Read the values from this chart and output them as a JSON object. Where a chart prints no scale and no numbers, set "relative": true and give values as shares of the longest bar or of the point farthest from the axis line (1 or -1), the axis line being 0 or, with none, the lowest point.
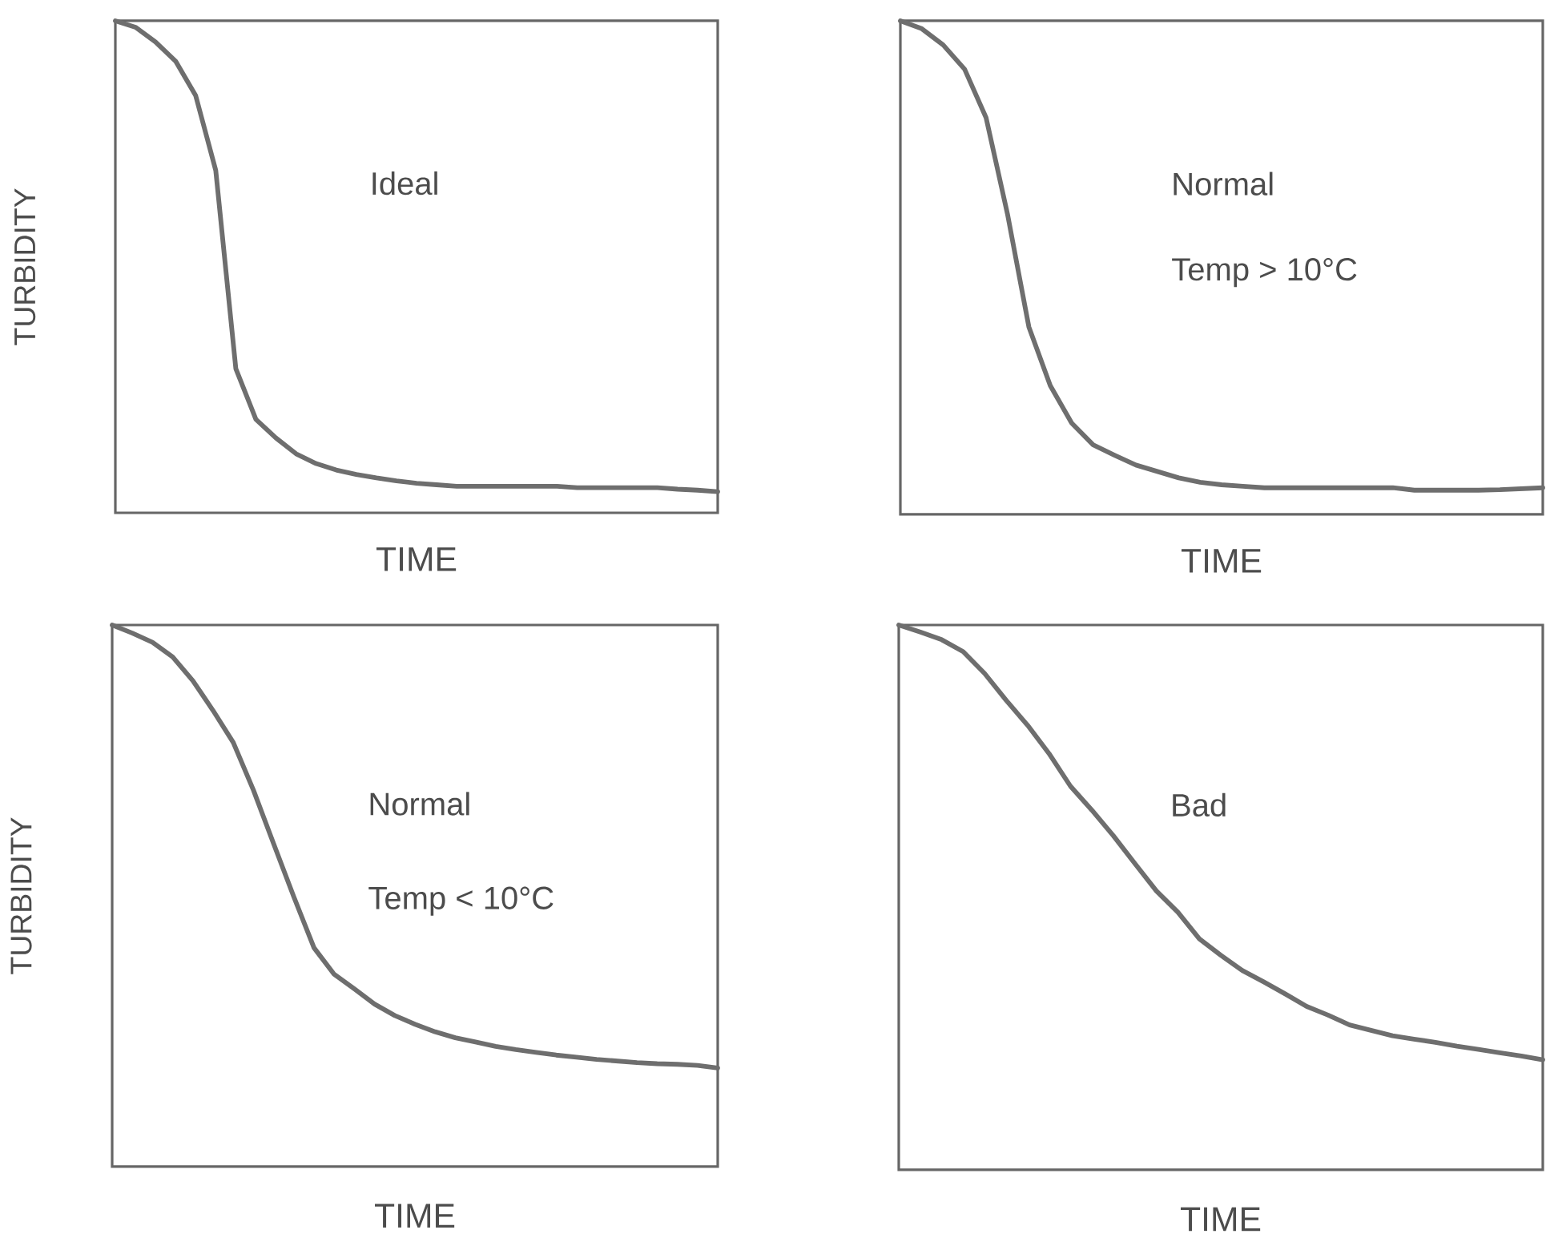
{
  "chart_data": [
    {
      "type": "line",
      "relative": true,
      "xlabel": "TIME",
      "ylabel": "TURBIDITY",
      "annotations": [
        "Ideal"
      ],
      "categories": [
        null,
        null,
        null,
        null,
        null,
        null,
        null,
        null,
        null,
        null,
        null,
        null,
        null,
        null,
        null,
        null,
        null,
        null,
        null,
        null,
        null,
        null,
        null,
        null,
        null,
        null,
        null,
        null,
        null,
        null,
        null
      ],
      "series": [
        {
          "color": "#6e6e6e",
          "values": [
            1.0,
            0.987,
            0.957,
            0.918,
            0.848,
            0.696,
            0.293,
            0.19,
            0.152,
            0.12,
            0.1,
            0.087,
            0.078,
            0.071,
            0.065,
            0.06,
            0.057,
            0.054,
            0.054,
            0.054,
            0.054,
            0.054,
            0.054,
            0.051,
            0.051,
            0.051,
            0.051,
            0.051,
            0.048,
            0.046,
            0.043
          ]
        }
      ]
    },
    {
      "type": "line",
      "relative": true,
      "xlabel": "TIME",
      "annotations": [
        "Normal",
        "Temp > 10°C"
      ],
      "categories": [
        null,
        null,
        null,
        null,
        null,
        null,
        null,
        null,
        null,
        null,
        null,
        null,
        null,
        null,
        null,
        null,
        null,
        null,
        null,
        null,
        null,
        null,
        null,
        null,
        null,
        null,
        null,
        null,
        null,
        null,
        null
      ],
      "series": [
        {
          "color": "#6e6e6e",
          "values": [
            1.0,
            0.984,
            0.951,
            0.902,
            0.804,
            0.609,
            0.38,
            0.261,
            0.185,
            0.141,
            0.12,
            0.1,
            0.087,
            0.074,
            0.065,
            0.06,
            0.057,
            0.054,
            0.054,
            0.054,
            0.054,
            0.054,
            0.054,
            0.054,
            0.049,
            0.049,
            0.049,
            0.049,
            0.05,
            0.052,
            0.054
          ]
        }
      ]
    },
    {
      "type": "line",
      "relative": true,
      "xlabel": "TIME",
      "ylabel": "TURBIDITY",
      "annotations": [
        "Normal",
        "Temp < 10°C"
      ],
      "categories": [
        null,
        null,
        null,
        null,
        null,
        null,
        null,
        null,
        null,
        null,
        null,
        null,
        null,
        null,
        null,
        null,
        null,
        null,
        null,
        null,
        null,
        null,
        null,
        null,
        null,
        null,
        null,
        null,
        null,
        null,
        null
      ],
      "series": [
        {
          "color": "#6e6e6e",
          "values": [
            1.0,
            0.985,
            0.968,
            0.941,
            0.897,
            0.842,
            0.783,
            0.695,
            0.596,
            0.498,
            0.404,
            0.355,
            0.328,
            0.3,
            0.279,
            0.263,
            0.249,
            0.238,
            0.23,
            0.222,
            0.216,
            0.211,
            0.206,
            0.202,
            0.198,
            0.195,
            0.192,
            0.19,
            0.189,
            0.187,
            0.182
          ]
        }
      ]
    },
    {
      "type": "line",
      "relative": true,
      "xlabel": "TIME",
      "annotations": [
        "Bad"
      ],
      "categories": [
        null,
        null,
        null,
        null,
        null,
        null,
        null,
        null,
        null,
        null,
        null,
        null,
        null,
        null,
        null,
        null,
        null,
        null,
        null,
        null,
        null,
        null,
        null,
        null,
        null,
        null,
        null,
        null,
        null,
        null,
        null
      ],
      "series": [
        {
          "color": "#6e6e6e",
          "values": [
            1.0,
            0.987,
            0.973,
            0.951,
            0.911,
            0.862,
            0.816,
            0.764,
            0.704,
            0.66,
            0.613,
            0.562,
            0.512,
            0.473,
            0.424,
            0.394,
            0.366,
            0.345,
            0.323,
            0.3,
            0.284,
            0.266,
            0.256,
            0.246,
            0.24,
            0.234,
            0.227,
            0.221,
            0.215,
            0.209,
            0.202
          ]
        }
      ]
    }
  ]
}
